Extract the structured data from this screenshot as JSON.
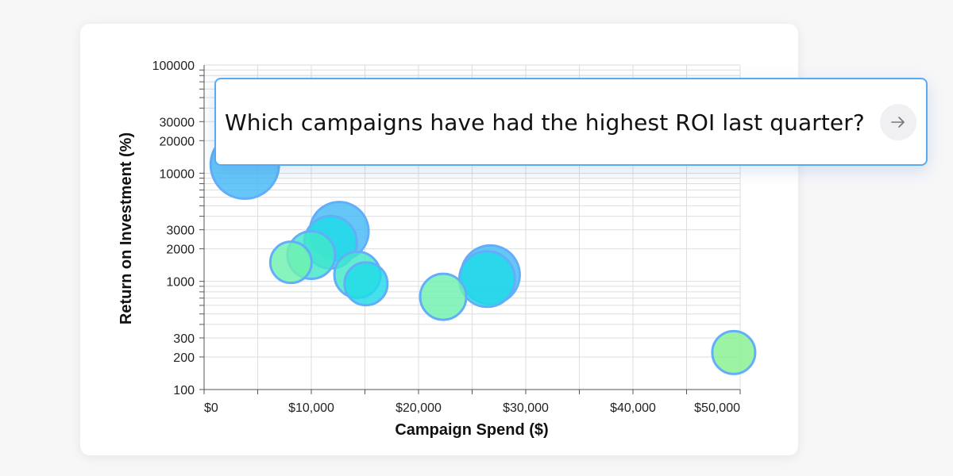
{
  "query_box": {
    "question": "Which campaigns have had the highest ROI last quarter?",
    "submit_icon": "arrow-right-icon"
  },
  "colors": {
    "bubble_blue": "#46b9f7",
    "bubble_cyan": "#1fdbe8",
    "bubble_green": "#86f08f",
    "bubble_stroke": "#62aef8",
    "accent_border": "#5aa9f5"
  },
  "chart_data": {
    "type": "scatter",
    "title": "",
    "xlabel": "Campaign Spend ($)",
    "ylabel": "Return on Investment (%)",
    "x_scale": "linear",
    "y_scale": "log",
    "xlim": [
      0,
      50000
    ],
    "ylim": [
      100,
      100000
    ],
    "x_ticks": [
      0,
      10000,
      20000,
      30000,
      40000,
      50000
    ],
    "x_tick_labels": [
      "$0",
      "$10,000",
      "$20,000",
      "$30,000",
      "$40,000",
      "$50,000"
    ],
    "y_ticks": [
      100,
      200,
      300,
      1000,
      2000,
      3000,
      10000,
      20000,
      30000,
      100000
    ],
    "y_tick_labels": [
      "100",
      "200",
      "300",
      "1000",
      "2000",
      "3000",
      "10000",
      "20000",
      "30000",
      "100000"
    ],
    "grid": true,
    "points": [
      {
        "x": 3800,
        "y": 12000,
        "size": 43,
        "color": "blue"
      },
      {
        "x": 12600,
        "y": 2900,
        "size": 37,
        "color": "blue"
      },
      {
        "x": 26700,
        "y": 1150,
        "size": 37,
        "color": "blue"
      },
      {
        "x": 11800,
        "y": 2300,
        "size": 33,
        "color": "cyan"
      },
      {
        "x": 26400,
        "y": 1050,
        "size": 35,
        "color": "cyan"
      },
      {
        "x": 10000,
        "y": 1750,
        "size": 30,
        "color": "teal"
      },
      {
        "x": 14300,
        "y": 1150,
        "size": 29,
        "color": "teal"
      },
      {
        "x": 15100,
        "y": 950,
        "size": 27,
        "color": "cyan"
      },
      {
        "x": 8100,
        "y": 1500,
        "size": 26,
        "color": "green"
      },
      {
        "x": 22300,
        "y": 720,
        "size": 29,
        "color": "green"
      },
      {
        "x": 49400,
        "y": 220,
        "size": 27,
        "color": "lime"
      }
    ]
  }
}
